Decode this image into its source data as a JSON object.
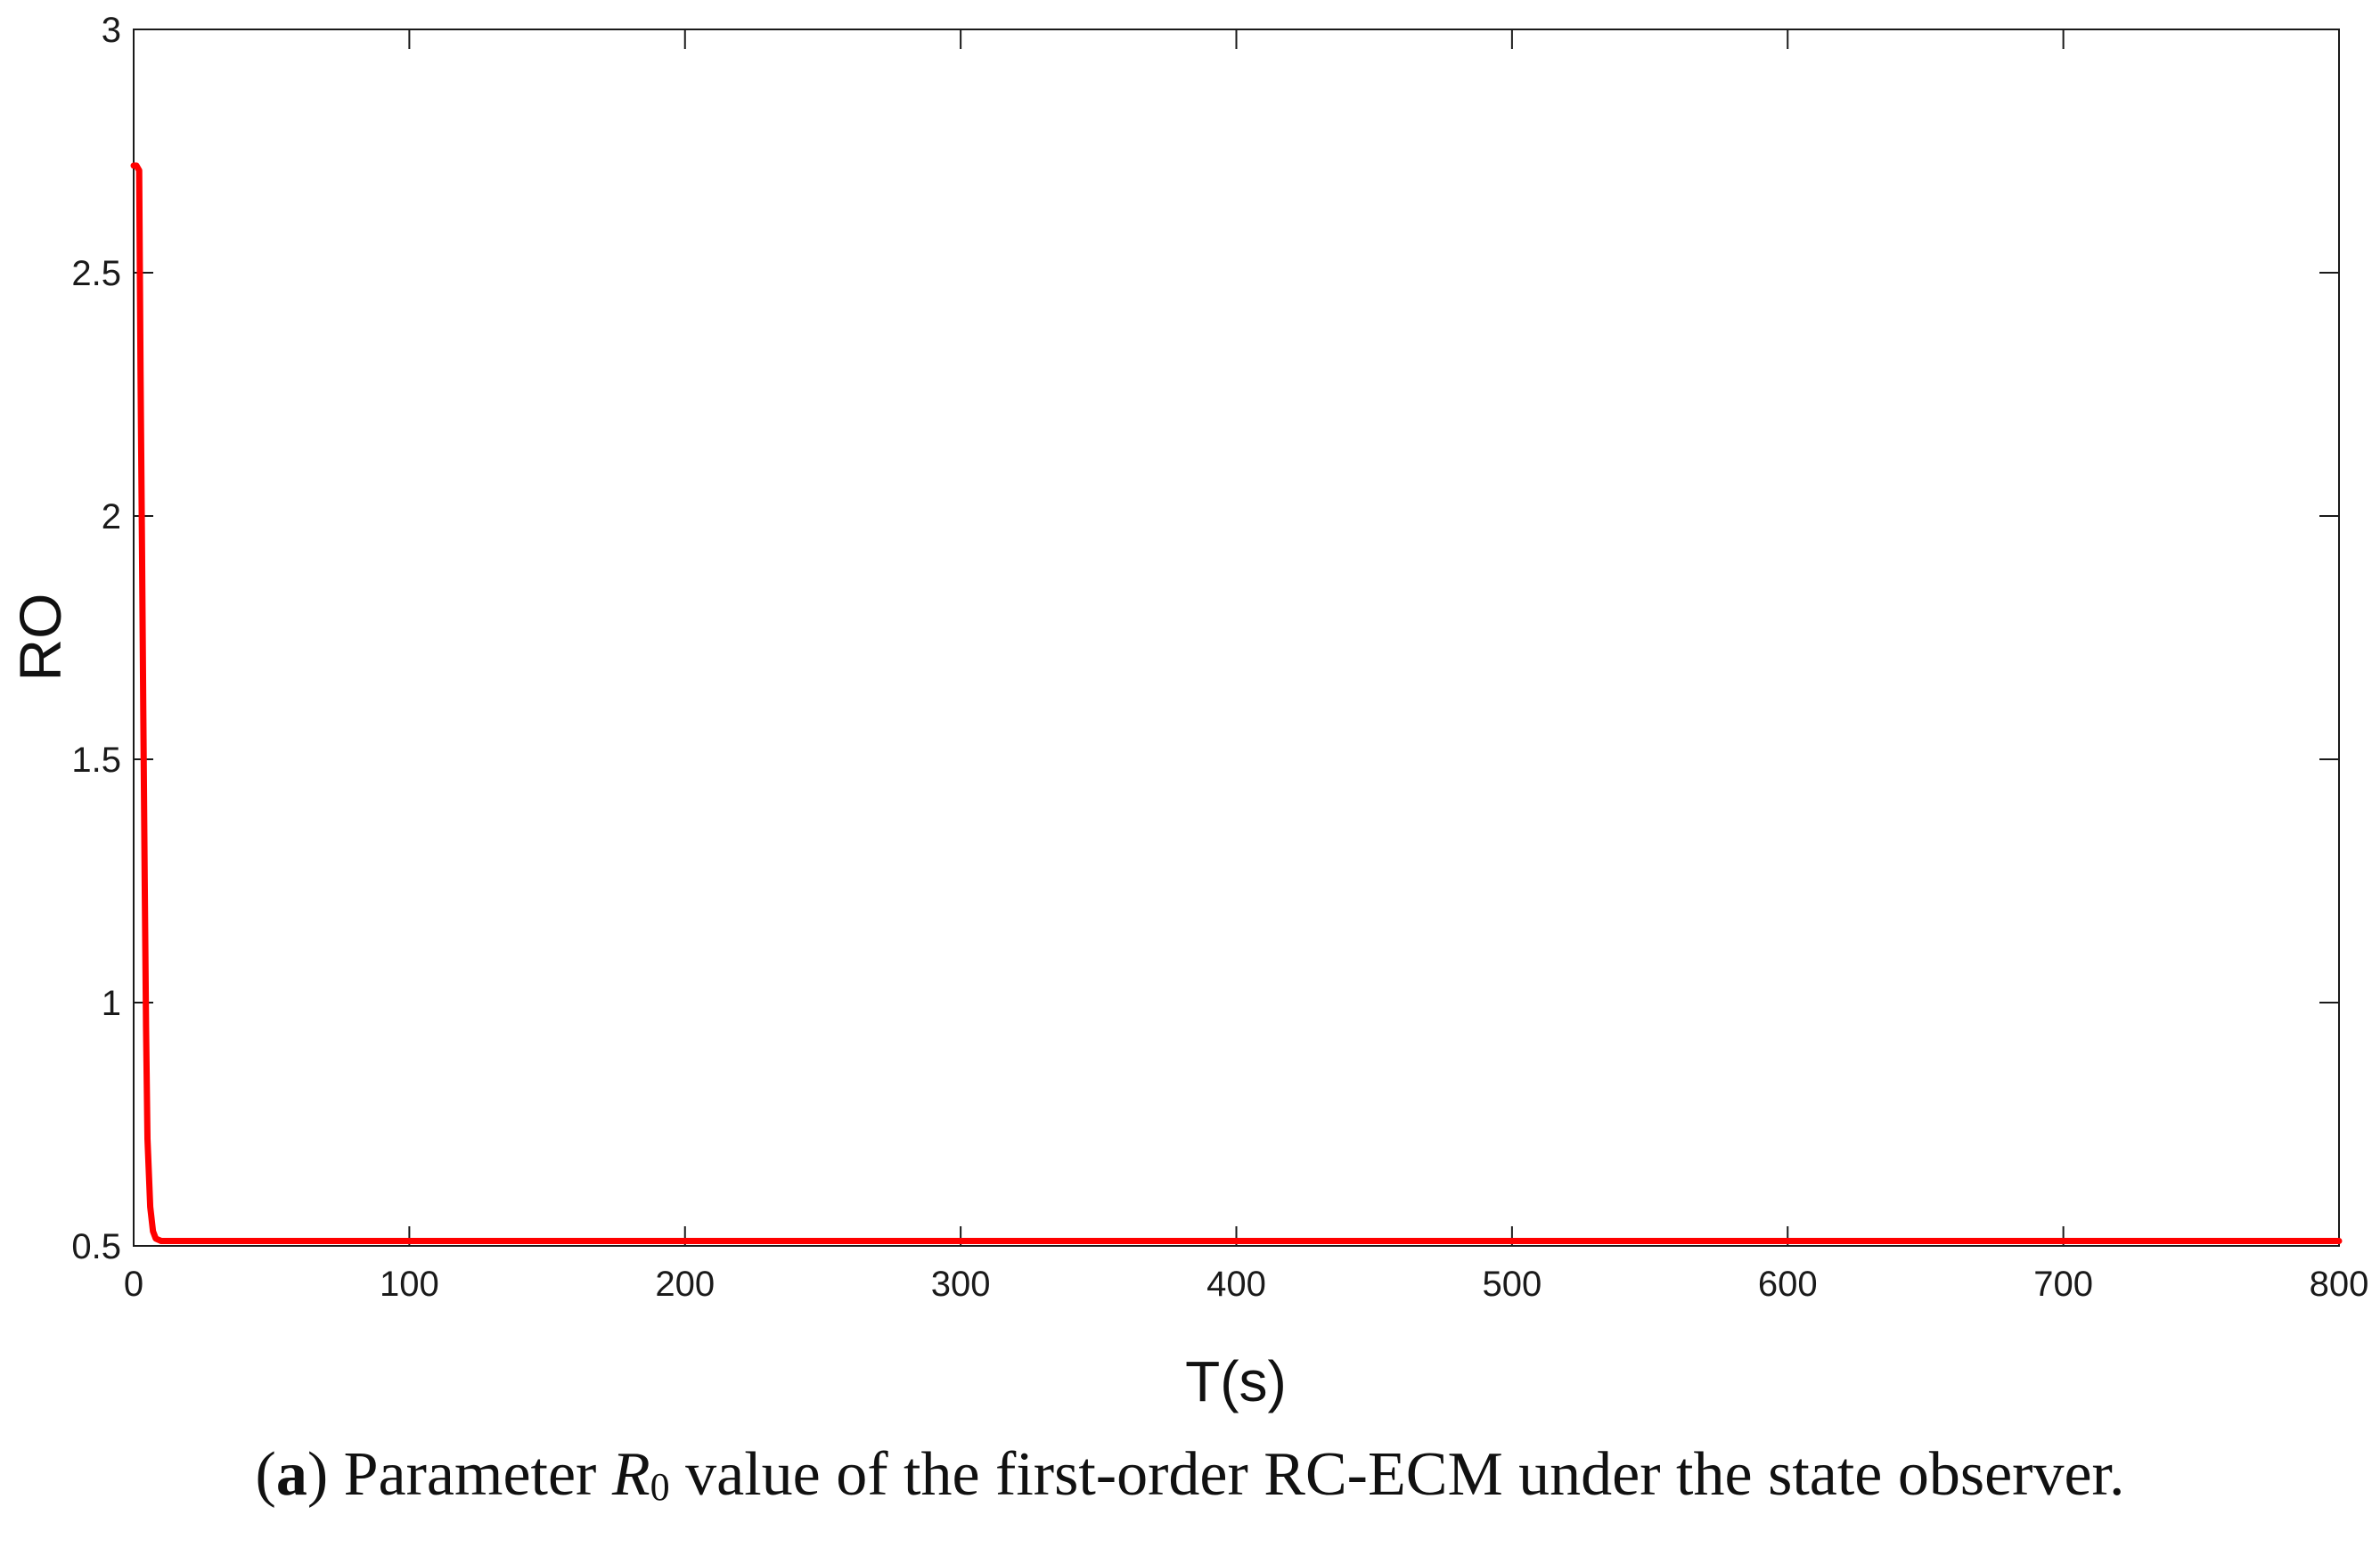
{
  "chart_data": {
    "type": "line",
    "xlabel": "T(s)",
    "ylabel": "RO",
    "xlim": [
      0,
      800
    ],
    "ylim": [
      0.5,
      3
    ],
    "x_ticks": [
      "0",
      "100",
      "200",
      "300",
      "400",
      "500",
      "600",
      "700",
      "800"
    ],
    "y_ticks": [
      "0.5",
      "1",
      "1.5",
      "2",
      "2.5",
      "3"
    ],
    "grid": false,
    "legend": "none",
    "series": [
      {
        "color": "#ff0000",
        "x": [
          0,
          1,
          2,
          2.5,
          3,
          3.5,
          4,
          4.5,
          5,
          6,
          7,
          8,
          10,
          12,
          15,
          20,
          50,
          100,
          200,
          300,
          400,
          500,
          600,
          700,
          800
        ],
        "y": [
          2.72,
          2.72,
          2.71,
          2.3,
          1.95,
          1.6,
          1.25,
          0.95,
          0.72,
          0.58,
          0.53,
          0.515,
          0.51,
          0.51,
          0.51,
          0.51,
          0.51,
          0.51,
          0.51,
          0.51,
          0.51,
          0.51,
          0.51,
          0.51,
          0.51
        ]
      }
    ]
  },
  "caption": {
    "label": "a",
    "text_before": " Parameter ",
    "symbol": "R",
    "subscript": "0",
    "text_after": " value of the first-order RC-ECM under the state observer."
  }
}
